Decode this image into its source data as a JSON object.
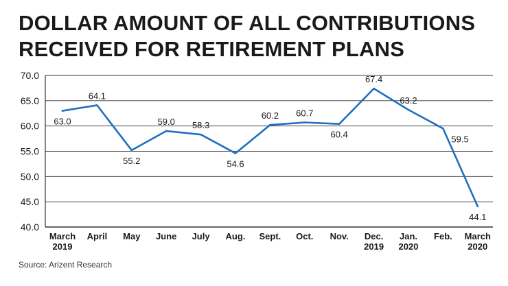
{
  "chart_data": {
    "type": "line",
    "title_lines": [
      "DOLLAR AMOUNT OF ALL CONTRIBUTIONS",
      "RECEIVED FOR RETIREMENT PLANS"
    ],
    "xlabel": "",
    "ylabel": "",
    "ylim": [
      40.0,
      70.0
    ],
    "y_ticks": [
      "70.0",
      "65.0",
      "60.0",
      "55.0",
      "50.0",
      "45.0",
      "40.0"
    ],
    "y_tick_values": [
      70,
      65,
      60,
      55,
      50,
      45,
      40
    ],
    "grid": true,
    "legend": "none",
    "categories": [
      [
        "March",
        "2019"
      ],
      [
        "April",
        ""
      ],
      [
        "May",
        ""
      ],
      [
        "June",
        ""
      ],
      [
        "July",
        ""
      ],
      [
        "Aug.",
        ""
      ],
      [
        "Sept.",
        ""
      ],
      [
        "Oct.",
        ""
      ],
      [
        "Nov.",
        ""
      ],
      [
        "Dec.",
        "2019"
      ],
      [
        "Jan.",
        "2020"
      ],
      [
        "Feb.",
        ""
      ],
      [
        "March",
        "2020"
      ]
    ],
    "series": [
      {
        "name": "Contributions",
        "values": [
          63.0,
          64.1,
          55.2,
          59.0,
          58.3,
          54.6,
          60.2,
          60.7,
          60.4,
          67.4,
          63.2,
          59.5,
          44.1
        ],
        "labels": [
          "63.0",
          "64.1",
          "55.2",
          "59.0",
          "58.3",
          "54.6",
          "60.2",
          "60.7",
          "60.4",
          "67.4",
          "63.2",
          "59.5",
          "44.1"
        ],
        "label_side": [
          "below",
          "above",
          "below",
          "above",
          "above",
          "below",
          "above",
          "above",
          "below",
          "above",
          "above",
          "right",
          "below"
        ]
      }
    ],
    "source": "Source: Arizent Research"
  },
  "colors": {
    "line": "#1f6fbf",
    "grid": "#333333",
    "text": "#1a1a1a"
  }
}
